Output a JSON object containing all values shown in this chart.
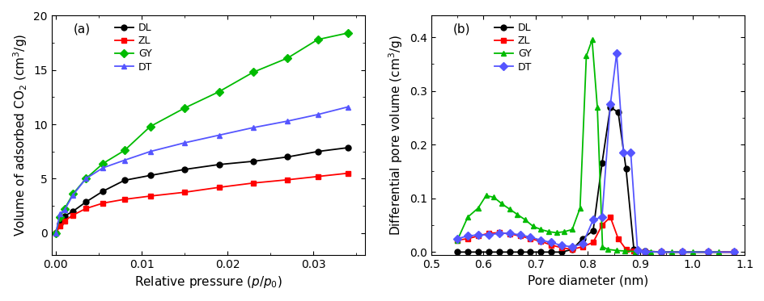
{
  "panel_a": {
    "title": "(a)",
    "xlabel": "Relative pressure ($p/p_0$)",
    "ylabel": "Volume of adsorbed CO$_2$ (cm$^3$/g)",
    "xlim": [
      -0.0005,
      0.036
    ],
    "ylim": [
      -2,
      20
    ],
    "yticks": [
      0,
      5,
      10,
      15,
      20
    ],
    "xticks": [
      0.0,
      0.01,
      0.02,
      0.03
    ],
    "series": {
      "DL": {
        "color": "#000000",
        "marker": "o",
        "x": [
          0.0,
          0.0005,
          0.001,
          0.002,
          0.0035,
          0.0055,
          0.008,
          0.011,
          0.015,
          0.019,
          0.023,
          0.027,
          0.0305,
          0.034
        ],
        "y": [
          0.0,
          0.85,
          1.55,
          2.0,
          2.85,
          3.85,
          4.85,
          5.3,
          5.85,
          6.3,
          6.6,
          7.0,
          7.5,
          7.85
        ]
      },
      "ZL": {
        "color": "#ff0000",
        "marker": "s",
        "x": [
          0.0,
          0.0005,
          0.001,
          0.002,
          0.0035,
          0.0055,
          0.008,
          0.011,
          0.015,
          0.019,
          0.023,
          0.027,
          0.0305,
          0.034
        ],
        "y": [
          0.0,
          0.65,
          1.1,
          1.65,
          2.25,
          2.75,
          3.1,
          3.4,
          3.75,
          4.2,
          4.6,
          4.9,
          5.2,
          5.5
        ]
      },
      "GY": {
        "color": "#00bb00",
        "marker": "D",
        "x": [
          0.0,
          0.0005,
          0.001,
          0.002,
          0.0035,
          0.0055,
          0.008,
          0.011,
          0.015,
          0.019,
          0.023,
          0.027,
          0.0305,
          0.034
        ],
        "y": [
          0.0,
          1.5,
          2.2,
          3.6,
          5.0,
          6.4,
          7.6,
          9.8,
          11.5,
          13.0,
          14.8,
          16.1,
          17.8,
          18.4
        ]
      },
      "DT": {
        "color": "#5555ff",
        "marker": "^",
        "x": [
          0.0,
          0.0005,
          0.001,
          0.002,
          0.0035,
          0.0055,
          0.008,
          0.011,
          0.015,
          0.019,
          0.023,
          0.027,
          0.0305,
          0.034
        ],
        "y": [
          0.0,
          1.8,
          2.1,
          3.5,
          5.0,
          6.0,
          6.7,
          7.5,
          8.3,
          9.0,
          9.7,
          10.3,
          10.9,
          11.6
        ]
      }
    }
  },
  "panel_b": {
    "title": "(b)",
    "xlabel": "Pore diameter (nm)",
    "ylabel": "Differential pore volume (cm$^3$/g)",
    "xlim": [
      0.5,
      1.1
    ],
    "ylim": [
      -0.005,
      0.44
    ],
    "yticks": [
      0.0,
      0.1,
      0.2,
      0.3,
      0.4
    ],
    "xticks": [
      0.5,
      0.6,
      0.7,
      0.8,
      0.9,
      1.0,
      1.1
    ],
    "series": {
      "DL": {
        "color": "#000000",
        "marker": "o",
        "x": [
          0.55,
          0.57,
          0.59,
          0.61,
          0.63,
          0.65,
          0.67,
          0.69,
          0.71,
          0.73,
          0.75,
          0.77,
          0.79,
          0.81,
          0.827,
          0.843,
          0.858,
          0.873,
          0.888,
          0.91,
          0.94,
          0.98,
          1.03,
          1.08
        ],
        "y": [
          0.0,
          0.0,
          0.0,
          0.0,
          0.0,
          0.0,
          0.0,
          0.0,
          0.0,
          0.0,
          0.0,
          0.005,
          0.025,
          0.04,
          0.165,
          0.27,
          0.26,
          0.155,
          0.005,
          0.002,
          0.0,
          0.0,
          0.0,
          0.0
        ]
      },
      "ZL": {
        "color": "#ff0000",
        "marker": "s",
        "x": [
          0.55,
          0.57,
          0.59,
          0.61,
          0.63,
          0.65,
          0.67,
          0.69,
          0.71,
          0.73,
          0.75,
          0.77,
          0.79,
          0.81,
          0.827,
          0.843,
          0.858,
          0.873,
          0.888,
          0.91,
          0.94,
          0.98,
          1.03,
          1.08
        ],
        "y": [
          0.022,
          0.025,
          0.03,
          0.035,
          0.036,
          0.034,
          0.03,
          0.025,
          0.02,
          0.013,
          0.008,
          0.005,
          0.01,
          0.018,
          0.05,
          0.065,
          0.025,
          0.005,
          0.002,
          0.001,
          0.0,
          0.0,
          0.0,
          0.0
        ]
      },
      "GY": {
        "color": "#00bb00",
        "marker": "^",
        "x": [
          0.55,
          0.57,
          0.59,
          0.605,
          0.62,
          0.635,
          0.65,
          0.665,
          0.68,
          0.695,
          0.71,
          0.725,
          0.74,
          0.755,
          0.77,
          0.785,
          0.797,
          0.808,
          0.818,
          0.828,
          0.838,
          0.855,
          0.87,
          0.89,
          0.92,
          0.96,
          1.0,
          1.05
        ],
        "y": [
          0.022,
          0.065,
          0.082,
          0.105,
          0.102,
          0.09,
          0.08,
          0.07,
          0.06,
          0.048,
          0.042,
          0.038,
          0.036,
          0.038,
          0.042,
          0.082,
          0.365,
          0.395,
          0.27,
          0.01,
          0.005,
          0.003,
          0.002,
          0.001,
          0.0,
          0.0,
          0.0,
          0.0
        ]
      },
      "DT": {
        "color": "#5555ff",
        "marker": "D",
        "x": [
          0.55,
          0.57,
          0.59,
          0.61,
          0.63,
          0.65,
          0.67,
          0.69,
          0.71,
          0.73,
          0.75,
          0.77,
          0.79,
          0.81,
          0.827,
          0.843,
          0.855,
          0.868,
          0.882,
          0.895,
          0.91,
          0.94,
          0.98,
          1.03,
          1.08
        ],
        "y": [
          0.025,
          0.03,
          0.032,
          0.032,
          0.035,
          0.035,
          0.032,
          0.028,
          0.022,
          0.018,
          0.012,
          0.01,
          0.015,
          0.06,
          0.065,
          0.275,
          0.37,
          0.185,
          0.185,
          0.003,
          0.001,
          0.0,
          0.0,
          0.0,
          0.0
        ]
      }
    }
  },
  "marker_size": 5,
  "linewidth": 1.3,
  "legend_fontsize": 9,
  "tick_fontsize": 10,
  "label_fontsize": 11,
  "title_fontsize": 11
}
